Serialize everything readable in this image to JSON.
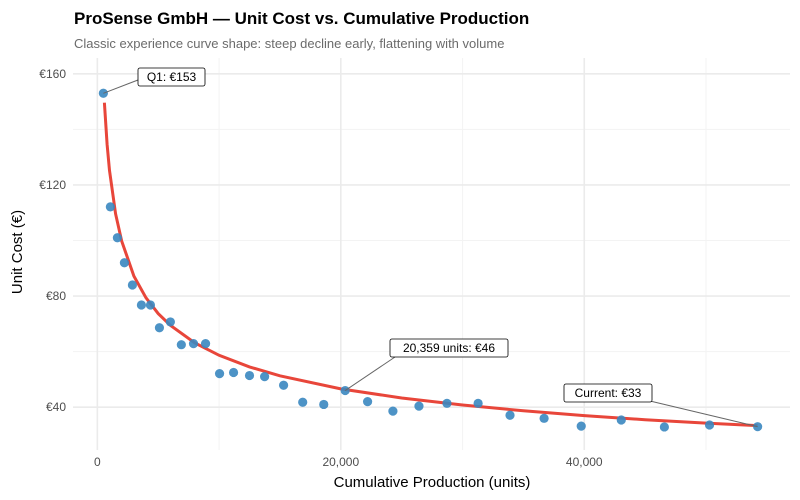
{
  "chart_data": {
    "type": "scatter",
    "title": "ProSense GmbH — Unit Cost vs. Cumulative Production",
    "subtitle": "Classic experience curve shape: steep decline early, flattening with volume",
    "xlabel": "Cumulative Production (units)",
    "ylabel": "Unit Cost (€)",
    "xlim": [
      -2000,
      56900
    ],
    "ylim": [
      24.6,
      165.7
    ],
    "x_ticks": [
      0,
      20000,
      40000
    ],
    "x_tick_labels": [
      "0",
      "20,000",
      "40,000"
    ],
    "y_ticks": [
      40,
      80,
      120,
      160
    ],
    "y_tick_labels": [
      "€40",
      "€80",
      "€120",
      "€160"
    ],
    "grid": true,
    "colors": {
      "points": "#3a87c0",
      "fit_line": "#e8463a",
      "annotation_line": "#666666"
    },
    "series": [
      {
        "type": "scatter",
        "x": [
          494,
          1070,
          1646,
          2222,
          2880,
          3620,
          4362,
          5100,
          6000,
          6900,
          7900,
          8890,
          10040,
          11190,
          12500,
          13740,
          15300,
          16870,
          18600,
          20359,
          22200,
          24280,
          26420,
          28720,
          31280,
          33900,
          36700,
          39750,
          43040,
          46580,
          50290,
          54240
        ],
        "y": [
          153,
          112.1,
          101,
          92,
          84,
          76.8,
          76.8,
          68.6,
          70.7,
          62.5,
          62.9,
          62.9,
          52.1,
          52.5,
          51.4,
          51,
          47.9,
          41.8,
          41,
          46,
          42,
          38.6,
          40.4,
          41.4,
          41.4,
          37.1,
          36,
          33.2,
          35.4,
          32.9,
          33.6,
          33
        ]
      },
      {
        "type": "line",
        "x": [
          576,
          800,
          1000,
          1500,
          2000,
          3000,
          4000,
          5000,
          6000,
          8000,
          10000,
          12500,
          15000,
          20000,
          25000,
          30000,
          35000,
          40000,
          45000,
          50000,
          54240
        ],
        "y": [
          149.6,
          134.6,
          125.2,
          109.6,
          99.8,
          87.2,
          79.4,
          73.7,
          69.5,
          63.2,
          58.7,
          54.5,
          51.3,
          46.6,
          43.3,
          40.8,
          38.7,
          37.0,
          35.5,
          34.3,
          33.4
        ]
      }
    ],
    "annotations": [
      {
        "label": "Q1: €153",
        "x": 494,
        "y": 153
      },
      {
        "label": "20,359 units: €46",
        "x": 20359,
        "y": 46
      },
      {
        "label": "Current: €33",
        "x": 54240,
        "y": 33
      }
    ]
  }
}
